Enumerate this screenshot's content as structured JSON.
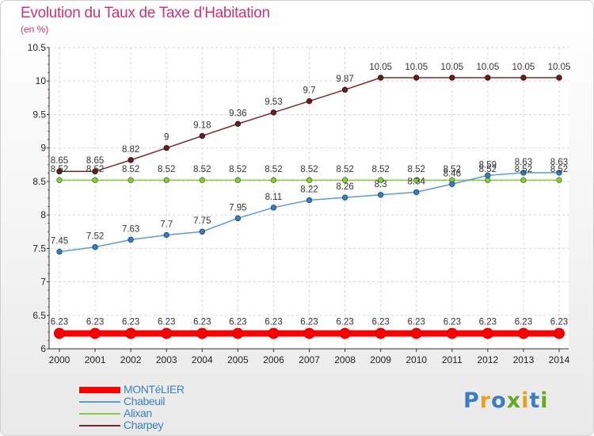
{
  "header": {
    "title": "Evolution du Taux de Taxe d'Habitation",
    "subtitle": "(en %)"
  },
  "logo": {
    "text": "Proxiti",
    "colors": [
      "#3b7dc4",
      "#e8a020",
      "#3b7dc4",
      "#66aa22",
      "#e8a020",
      "#3b7dc4",
      "#66aa22"
    ]
  },
  "chart_data": {
    "type": "line",
    "title": "Evolution du Taux de Taxe d'Habitation",
    "subtitle": "(en %)",
    "xlabel": "",
    "ylabel": "",
    "ylim": [
      6,
      10.5
    ],
    "y_ticks": [
      "6",
      "6.5",
      "7",
      "7.5",
      "8",
      "8.5",
      "9",
      "9.5",
      "10",
      "10.5"
    ],
    "grid": true,
    "legend_position": "bottom-left",
    "x": [
      "2000",
      "2001",
      "2002",
      "2003",
      "2004",
      "2005",
      "2006",
      "2007",
      "2008",
      "2009",
      "2010",
      "2011",
      "2012",
      "2013",
      "2014"
    ],
    "series": [
      {
        "name": "MONTéLIER",
        "color": "#ff0000",
        "values": [
          6.23,
          6.23,
          6.23,
          6.23,
          6.23,
          6.23,
          6.23,
          6.23,
          6.23,
          6.23,
          6.23,
          6.23,
          6.23,
          6.23,
          6.23
        ],
        "labels": [
          "6.23",
          "6.23",
          "6.23",
          "6.23",
          "6.23",
          "6.23",
          "6.23",
          "6.23",
          "6.23",
          "6.23",
          "6.23",
          "6.23",
          "6.23",
          "6.23",
          "6.23"
        ]
      },
      {
        "name": "Chabeuil",
        "color": "#5b9bd5",
        "values": [
          7.45,
          7.52,
          7.63,
          7.7,
          7.75,
          7.95,
          8.11,
          8.22,
          8.26,
          8.3,
          8.34,
          8.46,
          8.59,
          8.63,
          8.63
        ],
        "labels": [
          "7.45",
          "7.52",
          "7.63",
          "7.7",
          "7.75",
          "7.95",
          "8.11",
          "8.22",
          "8.26",
          "8.3",
          "8.34",
          "8.46",
          "8.59",
          "8.63",
          "8.63"
        ]
      },
      {
        "name": "Alixan",
        "color": "#88cc44",
        "values": [
          8.52,
          8.52,
          8.52,
          8.52,
          8.52,
          8.52,
          8.52,
          8.52,
          8.52,
          8.52,
          8.52,
          8.52,
          8.52,
          8.52,
          8.52
        ],
        "labels": [
          "8.52",
          "8.52",
          "8.52",
          "8.52",
          "8.52",
          "8.52",
          "8.52",
          "8.52",
          "8.52",
          "8.52",
          "8.52",
          "8.52",
          "8.52",
          "8.52",
          "8.52"
        ]
      },
      {
        "name": "Charpey",
        "color": "#7a2a2a",
        "values": [
          8.65,
          8.65,
          8.82,
          9,
          9.18,
          9.36,
          9.53,
          9.7,
          9.87,
          10.05,
          10.05,
          10.05,
          10.05,
          10.05,
          10.05
        ],
        "labels": [
          "8.65",
          "8.65",
          "8.82",
          "9",
          "9.18",
          "9.36",
          "9.53",
          "9.7",
          "9.87",
          "10.05",
          "10.05",
          "10.05",
          "10.05",
          "10.05",
          "10.05"
        ]
      }
    ]
  }
}
